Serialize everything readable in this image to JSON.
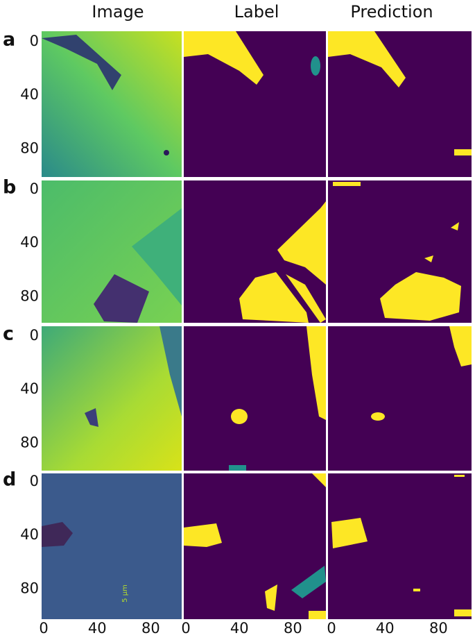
{
  "columns": [
    "Image",
    "Label",
    "Prediction"
  ],
  "rows": [
    {
      "label": "a",
      "yticks": [
        0,
        40,
        80
      ]
    },
    {
      "label": "b",
      "yticks": [
        0,
        40,
        80
      ]
    },
    {
      "label": "c",
      "yticks": [
        0,
        40,
        80
      ]
    },
    {
      "label": "d",
      "yticks": [
        0,
        40,
        80
      ]
    }
  ],
  "xticks": [
    0,
    40,
    80
  ],
  "scale_bar": "5 μm"
}
